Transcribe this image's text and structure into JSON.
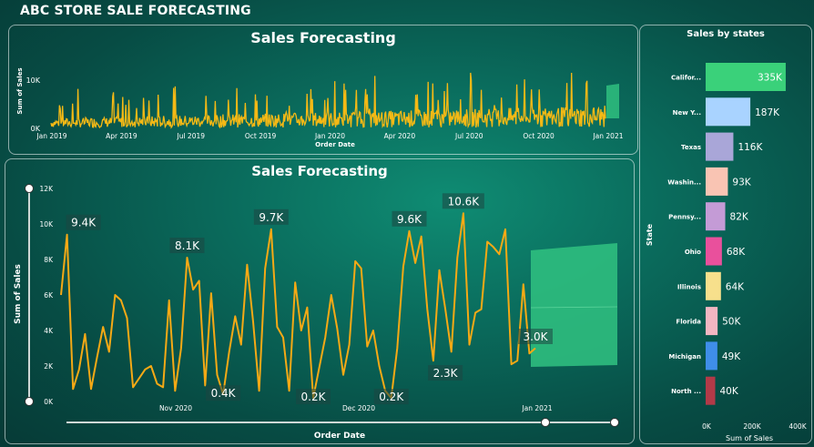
{
  "app_title": "ABC STORE SALE FORECASTING",
  "colors": {
    "line": "#f5b915",
    "forecast": "#2fbf7f",
    "axis": "#ffffff"
  },
  "top_chart": {
    "title": "Sales Forecasting",
    "ylabel": "Sum of Sales",
    "xlabel": "Order Date",
    "yticks": [
      "10K",
      "0K"
    ],
    "xticks": [
      "Jan 2019",
      "Apr 2019",
      "Jul 2019",
      "Oct 2019",
      "Jan 2020",
      "Apr 2020",
      "Jul 2020",
      "Oct 2020",
      "Jan 2021"
    ]
  },
  "main_chart": {
    "title": "Sales Forecasting",
    "ylabel": "Sum of Sales",
    "xlabel": "Order Date",
    "yticks": [
      "12K",
      "10K",
      "8K",
      "6K",
      "4K",
      "2K",
      "0K"
    ],
    "xticks": [
      "Nov 2020",
      "Dec 2020",
      "Jan 2021"
    ]
  },
  "state_chart": {
    "title": "Sales by states",
    "ylabel": "State",
    "xlabel": "Sum of Sales",
    "xticks": [
      "0K",
      "200K",
      "400K"
    ]
  },
  "chart_data": [
    {
      "type": "line",
      "title": "Sales Forecasting",
      "xlabel": "Order Date",
      "ylabel": "Sum of Sales",
      "ylim": [
        0,
        12000
      ],
      "x_range": [
        "2020-10-01",
        "2021-01-31"
      ],
      "series": [
        {
          "values": [
            6000,
            9400,
            700,
            1800,
            3800,
            700,
            2500,
            4200,
            2800,
            6000,
            5700,
            4700,
            800,
            1300,
            1800,
            2000,
            1000,
            800,
            5700,
            600,
            3000,
            8100,
            6300,
            6800,
            900,
            6100,
            1500,
            400,
            2800,
            4800,
            3200,
            7700,
            4500,
            600,
            7500,
            9700,
            4200,
            3600,
            600,
            6700,
            4000,
            5300,
            200,
            1900,
            3600,
            6000,
            4100,
            1500,
            3200,
            7900,
            7500,
            3100,
            4000,
            2000,
            600,
            200,
            3000,
            7600,
            9600,
            7800,
            9300,
            5200,
            2300,
            7400,
            5200,
            2800,
            8100,
            10600,
            3200,
            5000,
            5200,
            9000,
            8700,
            8300,
            9700,
            2100,
            2300,
            6600,
            2700,
            3000
          ]
        }
      ],
      "data_labels": [
        "9.4K",
        "8.1K",
        "9.7K",
        "9.6K",
        "10.6K",
        "3.0K",
        "0.4K",
        "0.2K",
        "0.2K",
        "2.3K"
      ],
      "forecast": {
        "start": "2021-01-01",
        "end": "2021-01-31"
      }
    },
    {
      "type": "bar",
      "title": "Sales by states",
      "xlabel": "Sum of Sales",
      "ylabel": "State",
      "xlim": [
        0,
        400
      ],
      "categories": [
        "Califor...",
        "New Y...",
        "Texas",
        "Washin...",
        "Pennsy...",
        "Ohio",
        "Illinois",
        "Florida",
        "Michigan",
        "North ..."
      ],
      "values": [
        335,
        187,
        116,
        93,
        82,
        68,
        64,
        50,
        49,
        40
      ],
      "value_labels": [
        "335K",
        "187K",
        "116K",
        "93K",
        "82K",
        "68K",
        "64K",
        "50K",
        "49K",
        "40K"
      ],
      "bar_colors": [
        "#3ad17a",
        "#a9d3ff",
        "#a9a6d8",
        "#f9c4b3",
        "#c49bd6",
        "#e9509c",
        "#f7e08c",
        "#f3b6c2",
        "#3f8ee8",
        "#b23a48"
      ]
    }
  ]
}
